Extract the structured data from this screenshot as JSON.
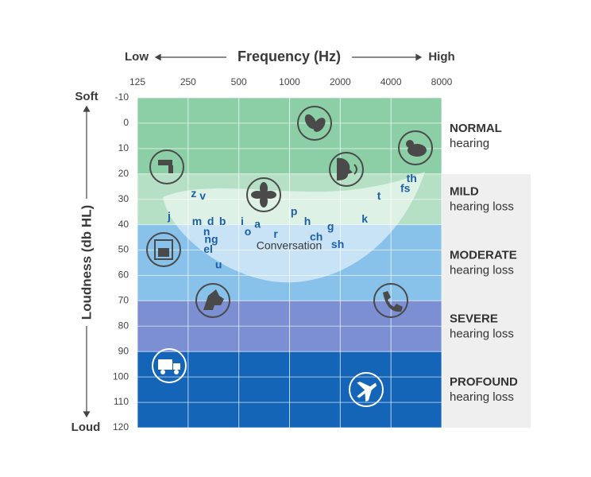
{
  "chart_data": {
    "type": "audiogram",
    "title": "Frequency (Hz)",
    "x_low_label": "Low",
    "x_high_label": "High",
    "y_label": "Loudness (db HL)",
    "y_top_label": "Soft",
    "y_bottom_label": "Loud",
    "x_scale": "log",
    "xlim": [
      125,
      8000
    ],
    "xticks": [
      125,
      250,
      500,
      1000,
      2000,
      4000,
      8000
    ],
    "ylim": [
      -10,
      120
    ],
    "y_inverted": true,
    "yticks": [
      -10,
      0,
      10,
      20,
      30,
      40,
      50,
      60,
      70,
      80,
      90,
      100,
      110,
      120
    ],
    "grid": true,
    "bands": [
      {
        "label": "NORMAL",
        "sublabel": "hearing",
        "from": -10,
        "to": 20,
        "color": "#8ccfa6"
      },
      {
        "label": "MILD",
        "sublabel": "hearing loss",
        "from": 20,
        "to": 40,
        "color": "#b6e0c6"
      },
      {
        "label": "MODERATE",
        "sublabel": "hearing loss",
        "from": 40,
        "to": 70,
        "color": "#88c2ea"
      },
      {
        "label": "SEVERE",
        "sublabel": "hearing loss",
        "from": 70,
        "to": 90,
        "color": "#7b8fd2"
      },
      {
        "label": "PROFOUND",
        "sublabel": "hearing loss",
        "from": 90,
        "to": 120,
        "color": "#1464b8"
      }
    ],
    "speech_area_label": "Conversation",
    "speech_sounds": {
      "color": "#1a5fa8",
      "labels": [
        "j",
        "z",
        "v",
        "m",
        "d",
        "b",
        "n",
        "ng",
        "el",
        "u",
        "i",
        "o",
        "a",
        "r",
        "p",
        "h",
        "ch",
        "g",
        "sh",
        "k",
        "t",
        "fs",
        "th"
      ],
      "x": [
        193,
        270,
        305,
        282,
        340,
        400,
        322,
        343,
        329,
        379,
        524,
        566,
        645,
        828,
        1063,
        1278,
        1441,
        1752,
        1931,
        2795,
        3398,
        4866,
        5306
      ],
      "values": [
        37,
        28,
        29,
        39,
        39,
        39,
        43,
        46,
        50,
        56,
        39,
        43,
        40,
        44,
        35,
        39,
        45,
        41,
        48,
        38,
        29,
        26,
        22
      ]
    }
  }
}
